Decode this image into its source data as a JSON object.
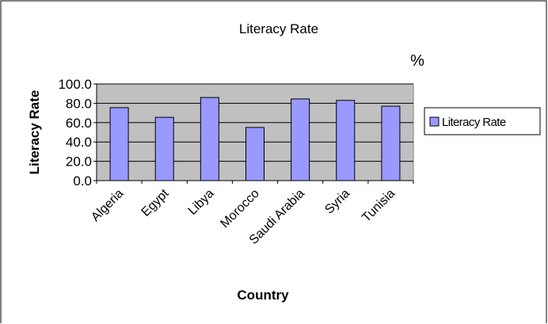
{
  "colors": {
    "plot_background": "#c0c0c0",
    "bar_fill": "#9999ff",
    "bar_stroke": "#000000",
    "gridline": "#000000"
  },
  "chart_data": {
    "type": "bar",
    "title": "Literacy Rate",
    "annotation": "%",
    "xlabel": "Country",
    "ylabel": "Literacy Rate",
    "categories": [
      "Algeria",
      "Egypt",
      "Libya",
      "Morocco",
      "Saudi Arabia",
      "Syria",
      "Tunisia"
    ],
    "series": [
      {
        "name": "Literacy Rate",
        "values": [
          75.5,
          65.5,
          86.0,
          55.0,
          84.5,
          83.0,
          77.0
        ]
      }
    ],
    "ylim": [
      0,
      100
    ],
    "yticks": [
      "0.0",
      "20.0",
      "40.0",
      "60.0",
      "80.0",
      "100.0"
    ],
    "grid": true,
    "legend": "right"
  }
}
